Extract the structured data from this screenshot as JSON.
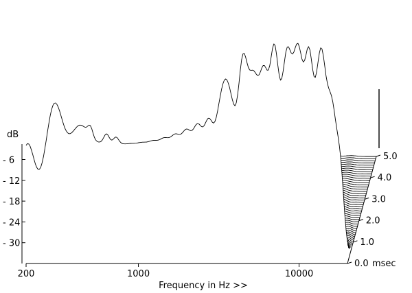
{
  "chart_data": {
    "type": "waterfall",
    "title": "",
    "xlabel": "Frequency in Hz >>",
    "ylabel": "dB",
    "zlabel": "msec",
    "x_scale": "log",
    "x_range_hz": [
      200,
      20000
    ],
    "x_ticks": [
      {
        "value": 200,
        "label": "200"
      },
      {
        "value": 1000,
        "label": "1000"
      },
      {
        "value": 10000,
        "label": "10000"
      }
    ],
    "y_ticks": [
      {
        "value": -6,
        "label": "- 6"
      },
      {
        "value": -12,
        "label": "- 12"
      },
      {
        "value": -18,
        "label": "- 18"
      },
      {
        "value": -24,
        "label": "- 24"
      },
      {
        "value": -30,
        "label": "- 30"
      }
    ],
    "y_range_db": [
      -36,
      0
    ],
    "time_ticks": [
      {
        "value": 0.0,
        "label": "0.0"
      },
      {
        "value": 1.0,
        "label": "1.0"
      },
      {
        "value": 2.0,
        "label": "2.0"
      },
      {
        "value": 3.0,
        "label": "3.0"
      },
      {
        "value": 4.0,
        "label": "4.0"
      },
      {
        "value": 5.0,
        "label": "5.0"
      }
    ],
    "time_range_msec": [
      0,
      5
    ],
    "slice_count": 50,
    "line_color": "#000000",
    "fill_color": "#ffffff",
    "grid": false,
    "legend": "none"
  }
}
